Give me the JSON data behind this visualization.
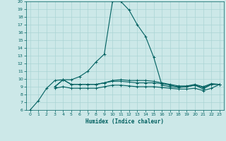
{
  "xlabel": "Humidex (Indice chaleur)",
  "bg_color": "#cce8e8",
  "grid_color": "#aad4d4",
  "line_color": "#006060",
  "xlim": [
    -0.5,
    23.5
  ],
  "ylim": [
    6,
    20
  ],
  "xticks": [
    0,
    1,
    2,
    3,
    4,
    5,
    6,
    7,
    8,
    9,
    10,
    11,
    12,
    13,
    14,
    15,
    16,
    17,
    18,
    19,
    20,
    21,
    22,
    23
  ],
  "yticks": [
    6,
    7,
    8,
    9,
    10,
    11,
    12,
    13,
    14,
    15,
    16,
    17,
    18,
    19,
    20
  ],
  "line1_x": [
    0,
    1,
    2,
    3,
    4,
    5,
    6,
    7,
    8,
    9,
    10,
    11,
    12,
    13,
    14,
    15,
    16,
    17,
    18,
    19,
    20,
    21,
    22,
    23
  ],
  "line1_y": [
    6.0,
    7.2,
    8.8,
    9.8,
    9.9,
    9.9,
    10.3,
    11.0,
    12.2,
    13.2,
    20.0,
    20.0,
    18.9,
    17.0,
    15.5,
    12.8,
    9.2,
    9.0,
    8.9,
    9.0,
    9.2,
    8.7,
    9.3,
    9.3
  ],
  "line2_x": [
    3,
    4,
    5,
    6,
    7,
    8,
    9,
    10,
    11,
    12,
    13,
    14,
    15,
    16,
    17,
    18,
    19,
    20,
    21,
    22,
    23
  ],
  "line2_y": [
    9.0,
    9.9,
    9.3,
    9.3,
    9.3,
    9.3,
    9.5,
    9.7,
    9.7,
    9.6,
    9.5,
    9.5,
    9.5,
    9.4,
    9.2,
    9.0,
    9.0,
    9.2,
    8.9,
    9.3,
    9.3
  ],
  "line3_x": [
    3,
    4,
    5,
    6,
    7,
    8,
    9,
    10,
    11,
    12,
    13,
    14,
    15,
    16,
    17,
    18,
    19,
    20,
    21,
    22,
    23
  ],
  "line3_y": [
    8.8,
    9.0,
    8.8,
    8.8,
    8.8,
    8.8,
    9.0,
    9.2,
    9.2,
    9.1,
    9.0,
    9.0,
    9.0,
    8.9,
    8.8,
    8.7,
    8.7,
    8.8,
    8.5,
    8.8,
    9.3
  ],
  "line4_x": [
    3,
    4,
    5,
    6,
    7,
    8,
    9,
    10,
    11,
    12,
    13,
    14,
    15,
    16,
    17,
    18,
    19,
    20,
    21,
    22,
    23
  ],
  "line4_y": [
    9.0,
    9.9,
    9.3,
    9.3,
    9.3,
    9.3,
    9.5,
    9.8,
    9.9,
    9.8,
    9.8,
    9.8,
    9.7,
    9.5,
    9.3,
    9.1,
    9.1,
    9.3,
    9.0,
    9.4,
    9.3
  ]
}
